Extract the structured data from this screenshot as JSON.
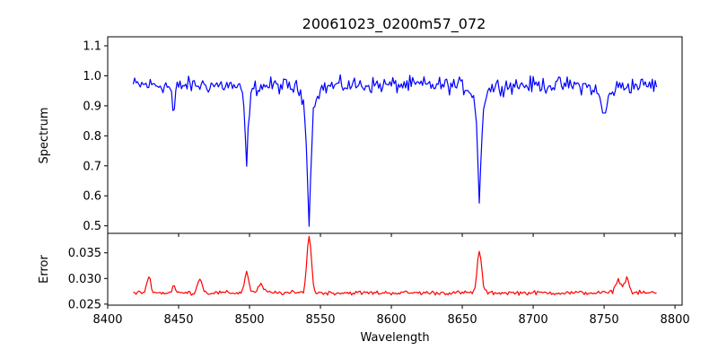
{
  "chart_data": {
    "title": "20061023_0200m57_072",
    "xlabel": "Wavelength",
    "xlim": [
      8400,
      8805
    ],
    "xticks": [
      8400,
      8450,
      8500,
      8550,
      8600,
      8650,
      8700,
      8750,
      8800
    ],
    "grid": false,
    "panels": [
      {
        "type": "line",
        "ylabel": "Spectrum",
        "ylim": [
          0.475,
          1.13
        ],
        "yticks": [
          0.5,
          0.6,
          0.7,
          0.8,
          0.9,
          1.0,
          1.1
        ],
        "series": [
          {
            "color": "#0000ff",
            "x_range": [
              8418,
              8787
            ],
            "step": 1,
            "continuum_mean": 0.97,
            "noise_amplitude": 0.04,
            "absorption_lines": [
              {
                "center": 8446.5,
                "depth": 0.12,
                "width": 0.8
              },
              {
                "center": 8498.0,
                "depth": 0.28,
                "width": 1.2
              },
              {
                "center": 8542.0,
                "depth": 0.47,
                "width": 1.5
              },
              {
                "center": 8662.1,
                "depth": 0.4,
                "width": 1.4
              },
              {
                "center": 8750.0,
                "depth": 0.1,
                "width": 3.0
              }
            ]
          }
        ]
      },
      {
        "type": "line",
        "ylabel": "Error",
        "ylim": [
          0.0248,
          0.0388
        ],
        "yticks": [
          0.025,
          0.03,
          0.035
        ],
        "series": [
          {
            "color": "#ff0000",
            "x_range": [
              8418,
              8787
            ],
            "step": 1,
            "baseline": 0.0272,
            "noise_amplitude": 0.0006,
            "peaks": [
              {
                "center": 8429,
                "height": 0.003,
                "width": 1.5
              },
              {
                "center": 8446.5,
                "height": 0.0015,
                "width": 1.0
              },
              {
                "center": 8465,
                "height": 0.003,
                "width": 1.5
              },
              {
                "center": 8498.0,
                "height": 0.004,
                "width": 1.5
              },
              {
                "center": 8508,
                "height": 0.0015,
                "width": 2.0
              },
              {
                "center": 8542.0,
                "height": 0.011,
                "width": 1.6
              },
              {
                "center": 8662.1,
                "height": 0.008,
                "width": 1.6
              },
              {
                "center": 8760,
                "height": 0.0025,
                "width": 2.0
              },
              {
                "center": 8766,
                "height": 0.003,
                "width": 1.5
              }
            ]
          }
        ]
      }
    ]
  }
}
